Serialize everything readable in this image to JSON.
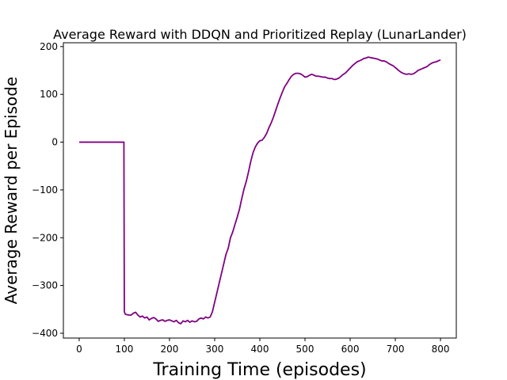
{
  "chart_data": {
    "type": "line",
    "title": "Average Reward with DDQN and Prioritized Replay (LunarLander)",
    "xlabel": "Training Time (episodes)",
    "ylabel": "Average Reward per Episode",
    "xlim": [
      -35,
      835
    ],
    "ylim": [
      -410,
      208
    ],
    "xticks": [
      0,
      100,
      200,
      300,
      400,
      500,
      600,
      700,
      800
    ],
    "yticks": [
      -400,
      -300,
      -200,
      -100,
      0,
      100,
      200
    ],
    "grid": false,
    "series": [
      {
        "color": "#800080",
        "x": [
          0,
          99,
          100,
          102,
          105,
          110,
          115,
          120,
          125,
          130,
          135,
          140,
          145,
          150,
          155,
          160,
          165,
          170,
          175,
          180,
          185,
          190,
          195,
          200,
          205,
          210,
          215,
          220,
          225,
          230,
          235,
          240,
          245,
          250,
          255,
          260,
          265,
          270,
          275,
          280,
          285,
          290,
          295,
          300,
          305,
          310,
          315,
          320,
          325,
          330,
          335,
          340,
          345,
          350,
          355,
          360,
          365,
          370,
          375,
          380,
          385,
          390,
          395,
          400,
          405,
          410,
          415,
          420,
          425,
          430,
          435,
          440,
          445,
          450,
          455,
          460,
          465,
          470,
          475,
          480,
          485,
          490,
          495,
          500,
          505,
          510,
          515,
          520,
          525,
          530,
          535,
          540,
          545,
          550,
          555,
          560,
          565,
          570,
          575,
          580,
          585,
          590,
          595,
          600,
          605,
          610,
          615,
          620,
          625,
          630,
          635,
          640,
          645,
          650,
          655,
          660,
          665,
          670,
          675,
          680,
          685,
          690,
          695,
          700,
          705,
          710,
          715,
          720,
          725,
          730,
          735,
          740,
          745,
          750,
          755,
          760,
          765,
          770,
          775,
          780,
          785,
          790,
          795,
          800
        ],
        "y": [
          0,
          0,
          -355,
          -360,
          -361,
          -362,
          -362,
          -358,
          -356,
          -362,
          -366,
          -364,
          -368,
          -366,
          -372,
          -369,
          -367,
          -370,
          -375,
          -373,
          -372,
          -375,
          -373,
          -372,
          -374,
          -376,
          -373,
          -378,
          -380,
          -374,
          -376,
          -373,
          -377,
          -374,
          -376,
          -375,
          -370,
          -368,
          -370,
          -366,
          -368,
          -366,
          -355,
          -335,
          -315,
          -295,
          -275,
          -255,
          -235,
          -222,
          -200,
          -188,
          -172,
          -157,
          -140,
          -118,
          -98,
          -82,
          -62,
          -40,
          -22,
          -10,
          -2,
          3,
          4,
          10,
          18,
          30,
          40,
          52,
          66,
          80,
          93,
          105,
          116,
          123,
          131,
          138,
          142,
          144,
          144,
          143,
          140,
          136,
          137,
          140,
          142,
          140,
          138,
          138,
          137,
          136,
          136,
          134,
          133,
          133,
          131,
          132,
          134,
          138,
          142,
          145,
          150,
          155,
          160,
          164,
          168,
          170,
          172,
          175,
          176,
          178,
          177,
          176,
          175,
          174,
          172,
          170,
          170,
          168,
          165,
          162,
          160,
          156,
          152,
          148,
          145,
          143,
          142,
          143,
          142,
          143,
          146,
          150,
          152,
          154,
          156,
          158,
          162,
          165,
          167,
          168,
          170,
          172
        ]
      }
    ]
  }
}
